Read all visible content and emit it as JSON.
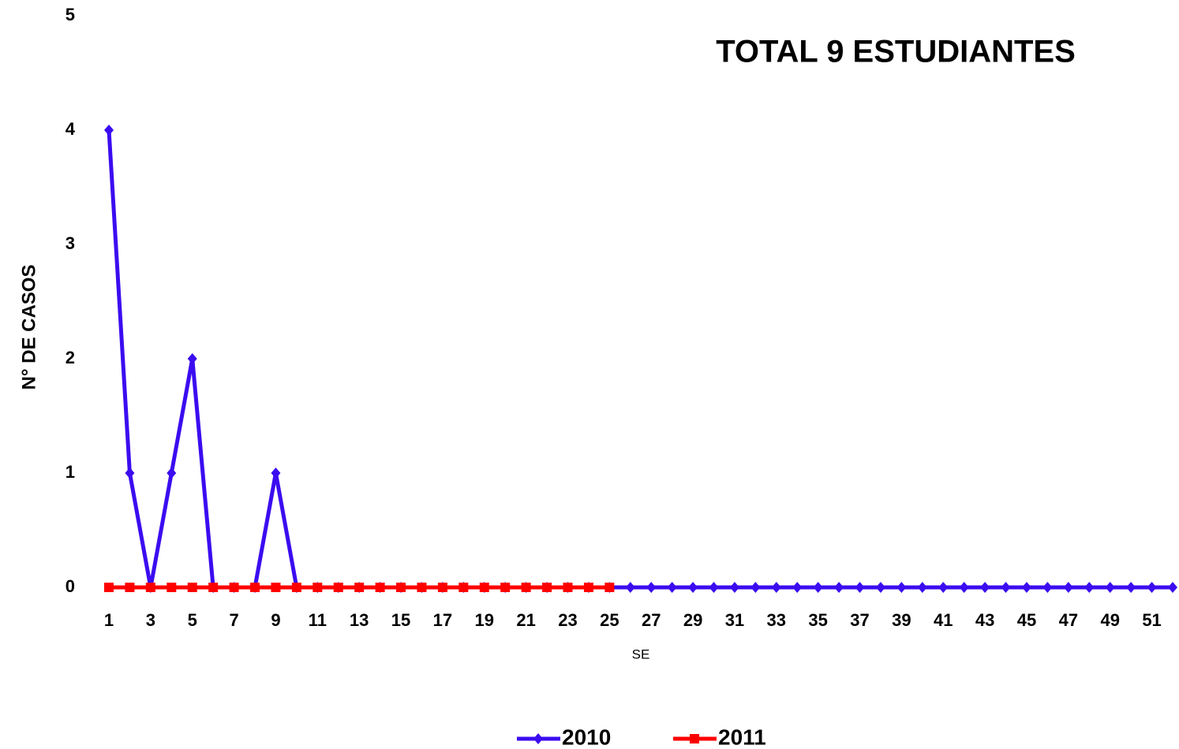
{
  "chart_data": {
    "type": "line",
    "title": "TOTAL  9 ESTUDIANTES",
    "x_label": "SE",
    "y_label": "N° DE CASOS",
    "categories": [
      1,
      null,
      3,
      null,
      5,
      null,
      7,
      null,
      9,
      null,
      11,
      null,
      13,
      null,
      15,
      null,
      17,
      null,
      19,
      null,
      21,
      null,
      23,
      null,
      25,
      null,
      27,
      null,
      29,
      null,
      31,
      null,
      33,
      null,
      35,
      null,
      37,
      null,
      39,
      null,
      41,
      null,
      43,
      null,
      45,
      null,
      47,
      null,
      49,
      null,
      51,
      null
    ],
    "series": [
      {
        "name": "2010",
        "color": "#3b0cf0",
        "marker": "diamond",
        "values": [
          4,
          1,
          0,
          1,
          2,
          0,
          0,
          0,
          1,
          0,
          0,
          0,
          0,
          0,
          0,
          0,
          0,
          0,
          0,
          0,
          0,
          0,
          0,
          0,
          0,
          0,
          0,
          0,
          0,
          0,
          0,
          0,
          0,
          0,
          0,
          0,
          0,
          0,
          0,
          0,
          0,
          0,
          0,
          0,
          0,
          0,
          0,
          0,
          0,
          0,
          0,
          0
        ]
      },
      {
        "name": "2011",
        "color": "#ff0000",
        "marker": "square",
        "values": [
          0,
          0,
          0,
          0,
          0,
          0,
          0,
          0,
          0,
          0,
          0,
          0,
          0,
          0,
          0,
          0,
          0,
          0,
          0,
          0,
          0,
          0,
          0,
          0,
          0,
          null,
          null,
          null,
          null,
          null,
          null,
          null,
          null,
          null,
          null,
          null,
          null,
          null,
          null,
          null,
          null,
          null,
          null,
          null,
          null,
          null,
          null,
          null,
          null,
          null,
          null,
          null
        ]
      }
    ],
    "ylim": [
      0,
      5
    ],
    "yticks": [
      0,
      1,
      2,
      3,
      4,
      5
    ],
    "grid": false,
    "legend": "bottom"
  }
}
